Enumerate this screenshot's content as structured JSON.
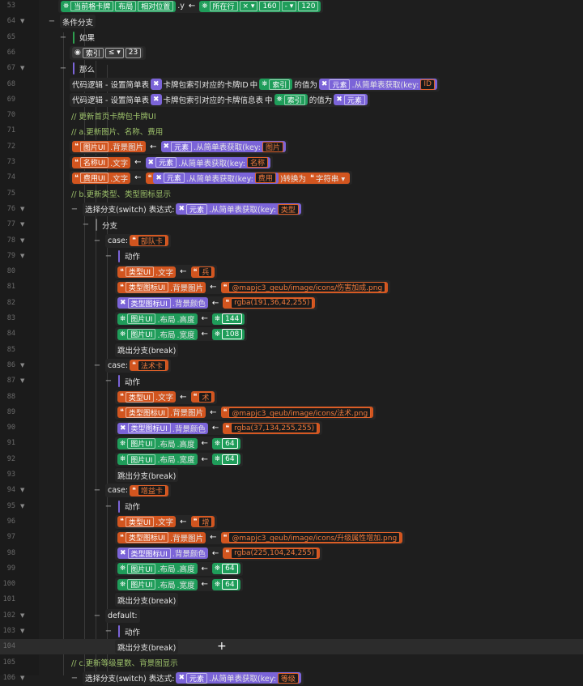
{
  "colors": {
    "orange": "#d2551f",
    "purple": "#7b64d8",
    "green": "#1f9d5a",
    "background": "#1e1e1e"
  },
  "rows": [
    {
      "ln": "53",
      "d": 4,
      "t": "cur",
      "p1": "当前格卡牌",
      "p2": "布局",
      "p3": "相对位置",
      "p4": ".y",
      "c1": "所在行",
      "op": "×",
      "v1": "160",
      "op2": "-",
      "v2": "120"
    },
    {
      "ln": "64",
      "d": 3,
      "t": "plain",
      "fold": true,
      "text": "条件分支"
    },
    {
      "ln": "65",
      "d": 4,
      "t": "bar",
      "bar": "#2e9e4e",
      "text": "如果"
    },
    {
      "ln": "66",
      "d": 5,
      "t": "cond",
      "c1": "索引",
      "op": "≤",
      "v1": "23"
    },
    {
      "ln": "67",
      "d": 4,
      "t": "bar",
      "fold": true,
      "bar": "#7b64d8",
      "text": "那么"
    },
    {
      "ln": "68",
      "d": 5,
      "t": "set1",
      "a": "代码逻辑 - 设置简单表",
      "b": "卡牌包索引对应的卡牌ID",
      "c": "中",
      "d2": "索引",
      "e": "的值为",
      "f": "元素",
      "g": ".从简单表获取(key:",
      "h": "ID"
    },
    {
      "ln": "69",
      "d": 5,
      "t": "set2",
      "a": "代码逻辑 - 设置简单表",
      "b": "卡牌包索引对应的卡牌信息表",
      "c": "中",
      "d2": "索引",
      "e": "的值为",
      "f": "元素"
    },
    {
      "ln": "70",
      "d": 5,
      "t": "cmt",
      "text": "// 更新首页卡牌包卡牌UI"
    },
    {
      "ln": "71",
      "d": 5,
      "t": "cmt",
      "text": "// a.更新图片、名称、费用"
    },
    {
      "ln": "72",
      "d": 5,
      "t": "assignKey",
      "l1": "图片UI",
      "l2": ".背景图片",
      "f": "元素",
      "g": ".从简单表获取(key:",
      "h": "图片"
    },
    {
      "ln": "73",
      "d": 5,
      "t": "assignKey",
      "l1": "名称UI",
      "l2": ".文字",
      "f": "元素",
      "g": ".从简单表获取(key:",
      "h": "名称"
    },
    {
      "ln": "74",
      "d": 5,
      "t": "assignConv",
      "l1": "费用UI",
      "l2": ".文字",
      "f": "元素",
      "g": ".从简单表获取(key:",
      "h": "费用",
      "conv": ")转换为",
      "type": "字符串"
    },
    {
      "ln": "75",
      "d": 5,
      "t": "cmt",
      "text": "// b.更新类型、类型图标显示"
    },
    {
      "ln": "76",
      "d": 5,
      "t": "switch",
      "fold": true,
      "a": "选择分支(switch) 表达式:",
      "f": "元素",
      "g": ".从简单表获取(key:",
      "h": "类型"
    },
    {
      "ln": "77",
      "d": 6,
      "t": "bar",
      "fold": true,
      "bar": "#777777",
      "text": "分支"
    },
    {
      "ln": "78",
      "d": 7,
      "t": "case",
      "fold": true,
      "a": "case:",
      "v": "部队卡"
    },
    {
      "ln": "79",
      "d": 8,
      "t": "bar",
      "fold": true,
      "bar": "#7b64d8",
      "text": "动作"
    },
    {
      "ln": "80",
      "d": 9,
      "t": "asg",
      "k": "orange",
      "l1": "类型UI",
      "l2": ".文字",
      "vk": "orange",
      "v": "兵"
    },
    {
      "ln": "81",
      "d": 9,
      "t": "asg",
      "k": "orange",
      "l1": "类型图标UI",
      "l2": ".背景图片",
      "vk": "orange",
      "v": "@mapjc3_qeub/image/icons/伤害加成.png"
    },
    {
      "ln": "82",
      "d": 9,
      "t": "asg",
      "k": "purple",
      "l1": "类型图标UI",
      "l2": ".背景颜色",
      "vk": "orange",
      "v": "rgba(191,36,42,255)"
    },
    {
      "ln": "83",
      "d": 9,
      "t": "asg",
      "k": "green",
      "l1": "图片UI",
      "l2": ".布局",
      "l3": ".高度",
      "vk": "green",
      "v": "144"
    },
    {
      "ln": "84",
      "d": 9,
      "t": "asg",
      "k": "green",
      "l1": "图片UI",
      "l2": ".布局",
      "l3": ".宽度",
      "vk": "green",
      "v": "108"
    },
    {
      "ln": "85",
      "d": 9,
      "t": "plain",
      "text": "跳出分支(break)"
    },
    {
      "ln": "86",
      "d": 7,
      "t": "case",
      "fold": true,
      "a": "case:",
      "v": "法术卡"
    },
    {
      "ln": "87",
      "d": 8,
      "t": "bar",
      "fold": true,
      "bar": "#7b64d8",
      "text": "动作"
    },
    {
      "ln": "88",
      "d": 9,
      "t": "asg",
      "k": "orange",
      "l1": "类型UI",
      "l2": ".文字",
      "vk": "orange",
      "v": "术"
    },
    {
      "ln": "89",
      "d": 9,
      "t": "asg",
      "k": "orange",
      "l1": "类型图标UI",
      "l2": ".背景图片",
      "vk": "orange",
      "v": "@mapjc3_qeub/image/icons/法术.png"
    },
    {
      "ln": "90",
      "d": 9,
      "t": "asg",
      "k": "purple",
      "l1": "类型图标UI",
      "l2": ".背景颜色",
      "vk": "orange",
      "v": "rgba(37,134,255,255)"
    },
    {
      "ln": "91",
      "d": 9,
      "t": "asg",
      "k": "green",
      "l1": "图片UI",
      "l2": ".布局",
      "l3": ".高度",
      "vk": "green",
      "v": "64"
    },
    {
      "ln": "92",
      "d": 9,
      "t": "asg",
      "k": "green",
      "l1": "图片UI",
      "l2": ".布局",
      "l3": ".宽度",
      "vk": "green",
      "v": "64"
    },
    {
      "ln": "93",
      "d": 9,
      "t": "plain",
      "text": "跳出分支(break)"
    },
    {
      "ln": "94",
      "d": 7,
      "t": "case",
      "fold": true,
      "a": "case:",
      "v": "增益卡"
    },
    {
      "ln": "95",
      "d": 8,
      "t": "bar",
      "fold": true,
      "bar": "#7b64d8",
      "text": "动作"
    },
    {
      "ln": "96",
      "d": 9,
      "t": "asg",
      "k": "orange",
      "l1": "类型UI",
      "l2": ".文字",
      "vk": "orange",
      "v": "增"
    },
    {
      "ln": "97",
      "d": 9,
      "t": "asg",
      "k": "orange",
      "l1": "类型图标UI",
      "l2": ".背景图片",
      "vk": "orange",
      "v": "@mapjc3_qeub/image/icons/升级属性增加.png"
    },
    {
      "ln": "98",
      "d": 9,
      "t": "asg",
      "k": "purple",
      "l1": "类型图标UI",
      "l2": ".背景颜色",
      "vk": "orange",
      "v": "rgba(225,104,24,255)"
    },
    {
      "ln": "99",
      "d": 9,
      "t": "asg",
      "k": "green",
      "l1": "图片UI",
      "l2": ".布局",
      "l3": ".高度",
      "vk": "green",
      "v": "64"
    },
    {
      "ln": "100",
      "d": 9,
      "t": "asg",
      "k": "green",
      "l1": "图片UI",
      "l2": ".布局",
      "l3": ".宽度",
      "vk": "green",
      "v": "64"
    },
    {
      "ln": "101",
      "d": 9,
      "t": "plain",
      "text": "跳出分支(break)"
    },
    {
      "ln": "102",
      "d": 7,
      "t": "plain",
      "fold": true,
      "text": "default:"
    },
    {
      "ln": "103",
      "d": 8,
      "t": "bar",
      "fold": true,
      "bar": "#7b64d8",
      "text": "动作"
    },
    {
      "ln": "104",
      "d": 9,
      "t": "plain",
      "hl": true,
      "plus": true,
      "text": "跳出分支(break)"
    },
    {
      "ln": "105",
      "d": 5,
      "t": "cmt",
      "text": "// c.更新等级星数、背景图显示"
    },
    {
      "ln": "106",
      "d": 5,
      "t": "switch",
      "fold": true,
      "a": "选择分支(switch) 表达式:",
      "f": "元素",
      "g": ".从简单表获取(key:",
      "h": "等级"
    }
  ]
}
